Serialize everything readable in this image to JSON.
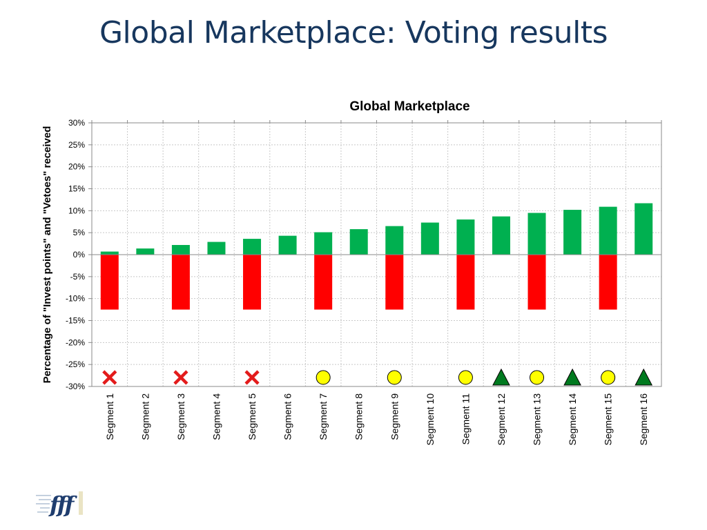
{
  "slide": {
    "title": "Global Marketplace: Voting results"
  },
  "colors": {
    "invest": "#00b050",
    "veto": "#ff0000",
    "cross": "#e31b1b",
    "circle_fill": "#ffff00",
    "triangle_fill": "#007a1f",
    "title_text": "#17375e"
  },
  "logo": {
    "text": "fff"
  },
  "chart_data": {
    "type": "bar",
    "title": "Global Marketplace",
    "ylabel": "Percentage of \"Invest points\" and \"Vetoes\" received",
    "xlabel": "",
    "ylim": [
      -30,
      30
    ],
    "yticks": [
      30,
      25,
      20,
      15,
      10,
      5,
      0,
      -5,
      -10,
      -15,
      -20,
      -25,
      -30
    ],
    "ytick_labels": [
      "30%",
      "25%",
      "20%",
      "15%",
      "10%",
      "5%",
      "0%",
      "-5%",
      "-10%",
      "-15%",
      "-20%",
      "-25%",
      "-30%"
    ],
    "grid": true,
    "categories": [
      "Segment 1",
      "Segment 2",
      "Segment 3",
      "Segment 4",
      "Segment 5",
      "Segment 6",
      "Segment 7",
      "Segment 8",
      "Segment 9",
      "Segment 10",
      "Segment 11",
      "Segment 12",
      "Segment 13",
      "Segment 14",
      "Segment 15",
      "Segment 16"
    ],
    "series": [
      {
        "key": "invest",
        "values": [
          0.7,
          1.4,
          2.2,
          2.9,
          3.6,
          4.3,
          5.1,
          5.8,
          6.5,
          7.3,
          8.0,
          8.7,
          9.5,
          10.2,
          10.9,
          11.7
        ]
      },
      {
        "key": "veto",
        "values": [
          -12.5,
          0,
          -12.5,
          0,
          -12.5,
          0,
          -12.5,
          0,
          -12.5,
          0,
          -12.5,
          0,
          -12.5,
          0,
          -12.5,
          0
        ]
      }
    ],
    "markers": [
      "cross",
      null,
      "cross",
      null,
      "cross",
      null,
      "circle",
      null,
      "circle",
      null,
      "circle",
      "triangle",
      "circle",
      "triangle",
      "circle",
      "triangle"
    ]
  }
}
